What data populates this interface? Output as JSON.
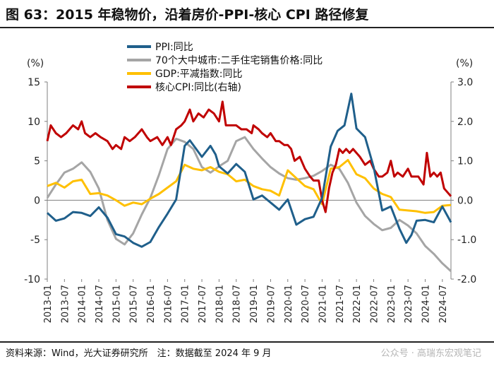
{
  "title": "图 63：2015 年稳物价，沿着房价-PPI-核心 CPI 路径修复",
  "footer": {
    "source": "资料来源：Wind，光大证券研究所　注：数据截至 2024 年 9 月",
    "watermark": "公众号 · 高瑞东宏观笔记"
  },
  "chart_data": {
    "type": "line",
    "left_unit": "(%)",
    "right_unit": "(%)",
    "left_ylim": [
      -10,
      15
    ],
    "right_ylim": [
      -2.0,
      3.0
    ],
    "left_ticks": [
      "15",
      "10",
      "5",
      "0",
      "-5",
      "-10"
    ],
    "right_ticks": [
      "3.0",
      "2.0",
      "1.0",
      "0.0",
      "-1.0",
      "-2.0"
    ],
    "x_range": [
      2013.0,
      2024.75
    ],
    "x_ticks": [
      "2013-01",
      "2013-07",
      "2014-01",
      "2014-07",
      "2015-01",
      "2015-07",
      "2016-01",
      "2016-07",
      "2017-01",
      "2017-07",
      "2018-01",
      "2018-07",
      "2019-01",
      "2019-07",
      "2020-01",
      "2020-07",
      "2021-01",
      "2021-07",
      "2022-01",
      "2022-07",
      "2023-01",
      "2023-07",
      "2024-01",
      "2024-07"
    ],
    "series": [
      {
        "name": "PPI:同比",
        "color": "#1f5f8b",
        "axis": "left",
        "width": 3,
        "points": [
          [
            2013.0,
            -1.6
          ],
          [
            2013.25,
            -2.6
          ],
          [
            2013.5,
            -2.3
          ],
          [
            2013.75,
            -1.5
          ],
          [
            2014.0,
            -1.6
          ],
          [
            2014.25,
            -2.0
          ],
          [
            2014.5,
            -0.9
          ],
          [
            2014.75,
            -2.2
          ],
          [
            2015.0,
            -4.3
          ],
          [
            2015.25,
            -4.6
          ],
          [
            2015.5,
            -5.4
          ],
          [
            2015.75,
            -5.9
          ],
          [
            2016.0,
            -5.3
          ],
          [
            2016.25,
            -3.4
          ],
          [
            2016.5,
            -1.7
          ],
          [
            2016.75,
            0.1
          ],
          [
            2017.0,
            6.9
          ],
          [
            2017.15,
            7.6
          ],
          [
            2017.35,
            6.4
          ],
          [
            2017.5,
            5.5
          ],
          [
            2017.75,
            6.9
          ],
          [
            2017.9,
            5.8
          ],
          [
            2018.0,
            4.3
          ],
          [
            2018.25,
            3.4
          ],
          [
            2018.5,
            4.6
          ],
          [
            2018.75,
            3.6
          ],
          [
            2019.0,
            0.1
          ],
          [
            2019.25,
            0.6
          ],
          [
            2019.5,
            -0.3
          ],
          [
            2019.75,
            -1.2
          ],
          [
            2020.0,
            0.1
          ],
          [
            2020.25,
            -3.1
          ],
          [
            2020.5,
            -2.4
          ],
          [
            2020.75,
            -2.1
          ],
          [
            2021.0,
            0.3
          ],
          [
            2021.25,
            6.8
          ],
          [
            2021.45,
            8.8
          ],
          [
            2021.65,
            9.5
          ],
          [
            2021.85,
            13.5
          ],
          [
            2022.0,
            9.1
          ],
          [
            2022.25,
            8.0
          ],
          [
            2022.5,
            4.2
          ],
          [
            2022.75,
            -1.3
          ],
          [
            2023.0,
            -0.8
          ],
          [
            2023.25,
            -3.6
          ],
          [
            2023.45,
            -5.4
          ],
          [
            2023.6,
            -4.4
          ],
          [
            2023.75,
            -2.6
          ],
          [
            2024.0,
            -2.5
          ],
          [
            2024.25,
            -2.8
          ],
          [
            2024.5,
            -0.8
          ],
          [
            2024.75,
            -2.8
          ]
        ]
      },
      {
        "name": "70个大中城市:二手住宅销售价格:同比",
        "color": "#a5a5a5",
        "axis": "left",
        "width": 3,
        "points": [
          [
            2013.0,
            0.3
          ],
          [
            2013.25,
            2.0
          ],
          [
            2013.5,
            3.5
          ],
          [
            2013.75,
            4.0
          ],
          [
            2014.0,
            4.8
          ],
          [
            2014.25,
            3.6
          ],
          [
            2014.5,
            1.5
          ],
          [
            2014.75,
            -2.5
          ],
          [
            2015.0,
            -4.9
          ],
          [
            2015.25,
            -5.6
          ],
          [
            2015.5,
            -4.2
          ],
          [
            2015.75,
            -1.8
          ],
          [
            2016.0,
            0.3
          ],
          [
            2016.25,
            3.2
          ],
          [
            2016.5,
            6.5
          ],
          [
            2016.75,
            7.8
          ],
          [
            2017.0,
            7.4
          ],
          [
            2017.25,
            6.5
          ],
          [
            2017.5,
            4.2
          ],
          [
            2017.75,
            3.5
          ],
          [
            2018.0,
            4.3
          ],
          [
            2018.25,
            5.0
          ],
          [
            2018.5,
            7.5
          ],
          [
            2018.75,
            8.0
          ],
          [
            2019.0,
            6.5
          ],
          [
            2019.25,
            5.3
          ],
          [
            2019.5,
            4.2
          ],
          [
            2019.75,
            3.4
          ],
          [
            2020.0,
            2.8
          ],
          [
            2020.25,
            2.6
          ],
          [
            2020.5,
            2.8
          ],
          [
            2020.75,
            3.1
          ],
          [
            2021.0,
            3.7
          ],
          [
            2021.25,
            4.5
          ],
          [
            2021.5,
            4.0
          ],
          [
            2021.75,
            2.2
          ],
          [
            2022.0,
            -0.3
          ],
          [
            2022.25,
            -2.0
          ],
          [
            2022.5,
            -3.0
          ],
          [
            2022.75,
            -3.8
          ],
          [
            2023.0,
            -3.5
          ],
          [
            2023.25,
            -2.5
          ],
          [
            2023.5,
            -3.2
          ],
          [
            2023.75,
            -4.2
          ],
          [
            2024.0,
            -5.8
          ],
          [
            2024.25,
            -6.8
          ],
          [
            2024.5,
            -8.0
          ],
          [
            2024.75,
            -9.0
          ]
        ]
      },
      {
        "name": "GDP:平减指数:同比",
        "color": "#ffc000",
        "axis": "left",
        "width": 3,
        "points": [
          [
            2013.0,
            1.8
          ],
          [
            2013.25,
            2.2
          ],
          [
            2013.5,
            1.6
          ],
          [
            2013.75,
            2.4
          ],
          [
            2014.0,
            2.6
          ],
          [
            2014.25,
            0.8
          ],
          [
            2014.5,
            0.9
          ],
          [
            2014.75,
            0.6
          ],
          [
            2015.0,
            0.0
          ],
          [
            2015.25,
            -0.7
          ],
          [
            2015.5,
            -0.3
          ],
          [
            2015.75,
            -0.5
          ],
          [
            2016.0,
            0.2
          ],
          [
            2016.25,
            0.8
          ],
          [
            2016.5,
            1.6
          ],
          [
            2016.75,
            2.4
          ],
          [
            2017.0,
            4.5
          ],
          [
            2017.25,
            4.0
          ],
          [
            2017.5,
            3.8
          ],
          [
            2017.75,
            4.2
          ],
          [
            2018.0,
            3.6
          ],
          [
            2018.25,
            3.3
          ],
          [
            2018.5,
            2.4
          ],
          [
            2018.75,
            2.6
          ],
          [
            2019.0,
            1.8
          ],
          [
            2019.25,
            1.4
          ],
          [
            2019.5,
            1.2
          ],
          [
            2019.75,
            0.6
          ],
          [
            2020.0,
            3.8
          ],
          [
            2020.25,
            2.8
          ],
          [
            2020.5,
            1.8
          ],
          [
            2020.75,
            1.4
          ],
          [
            2021.0,
            -0.5
          ],
          [
            2021.25,
            4.0
          ],
          [
            2021.5,
            4.2
          ],
          [
            2021.75,
            5.1
          ],
          [
            2022.0,
            3.3
          ],
          [
            2022.25,
            2.8
          ],
          [
            2022.5,
            1.5
          ],
          [
            2022.75,
            0.8
          ],
          [
            2023.0,
            0.4
          ],
          [
            2023.25,
            -1.2
          ],
          [
            2023.5,
            -1.3
          ],
          [
            2023.75,
            -1.4
          ],
          [
            2024.0,
            -1.6
          ],
          [
            2024.25,
            -1.5
          ],
          [
            2024.5,
            -0.7
          ],
          [
            2024.75,
            -0.6
          ]
        ]
      },
      {
        "name": "核心CPI:同比(右轴)",
        "color": "#c00000",
        "axis": "right",
        "width": 3,
        "points": [
          [
            2013.0,
            1.5
          ],
          [
            2013.1,
            1.9
          ],
          [
            2013.25,
            1.7
          ],
          [
            2013.4,
            1.6
          ],
          [
            2013.55,
            1.7
          ],
          [
            2013.75,
            1.9
          ],
          [
            2013.9,
            1.8
          ],
          [
            2014.0,
            2.0
          ],
          [
            2014.1,
            1.7
          ],
          [
            2014.25,
            1.6
          ],
          [
            2014.4,
            1.7
          ],
          [
            2014.55,
            1.6
          ],
          [
            2014.75,
            1.5
          ],
          [
            2014.9,
            1.3
          ],
          [
            2015.0,
            1.4
          ],
          [
            2015.15,
            1.3
          ],
          [
            2015.25,
            1.6
          ],
          [
            2015.4,
            1.5
          ],
          [
            2015.55,
            1.6
          ],
          [
            2015.75,
            1.8
          ],
          [
            2015.9,
            1.6
          ],
          [
            2016.0,
            1.5
          ],
          [
            2016.2,
            1.6
          ],
          [
            2016.35,
            1.4
          ],
          [
            2016.5,
            1.6
          ],
          [
            2016.6,
            1.4
          ],
          [
            2016.75,
            1.8
          ],
          [
            2016.9,
            1.9
          ],
          [
            2017.0,
            2.0
          ],
          [
            2017.15,
            2.3
          ],
          [
            2017.25,
            2.0
          ],
          [
            2017.4,
            2.2
          ],
          [
            2017.55,
            2.1
          ],
          [
            2017.7,
            2.3
          ],
          [
            2017.85,
            2.2
          ],
          [
            2018.0,
            2.0
          ],
          [
            2018.1,
            2.5
          ],
          [
            2018.2,
            1.9
          ],
          [
            2018.35,
            1.9
          ],
          [
            2018.5,
            1.9
          ],
          [
            2018.65,
            1.8
          ],
          [
            2018.8,
            1.8
          ],
          [
            2018.95,
            1.7
          ],
          [
            2019.0,
            1.9
          ],
          [
            2019.15,
            1.8
          ],
          [
            2019.25,
            1.7
          ],
          [
            2019.4,
            1.6
          ],
          [
            2019.5,
            1.7
          ],
          [
            2019.65,
            1.5
          ],
          [
            2019.75,
            1.5
          ],
          [
            2019.9,
            1.4
          ],
          [
            2020.0,
            1.4
          ],
          [
            2020.1,
            1.3
          ],
          [
            2020.2,
            1.0
          ],
          [
            2020.35,
            1.1
          ],
          [
            2020.5,
            0.8
          ],
          [
            2020.65,
            0.6
          ],
          [
            2020.75,
            0.5
          ],
          [
            2020.9,
            0.5
          ],
          [
            2021.0,
            0.0
          ],
          [
            2021.1,
            -0.3
          ],
          [
            2021.2,
            0.3
          ],
          [
            2021.3,
            0.7
          ],
          [
            2021.4,
            0.9
          ],
          [
            2021.5,
            1.3
          ],
          [
            2021.6,
            1.2
          ],
          [
            2021.7,
            1.3
          ],
          [
            2021.8,
            1.2
          ],
          [
            2021.9,
            1.3
          ],
          [
            2022.0,
            1.2
          ],
          [
            2022.1,
            1.1
          ],
          [
            2022.25,
            0.9
          ],
          [
            2022.4,
            1.0
          ],
          [
            2022.5,
            0.8
          ],
          [
            2022.65,
            0.6
          ],
          [
            2022.75,
            0.6
          ],
          [
            2022.9,
            0.7
          ],
          [
            2023.0,
            1.0
          ],
          [
            2023.1,
            0.6
          ],
          [
            2023.2,
            0.7
          ],
          [
            2023.35,
            0.6
          ],
          [
            2023.5,
            0.8
          ],
          [
            2023.6,
            0.6
          ],
          [
            2023.7,
            0.6
          ],
          [
            2023.8,
            0.6
          ],
          [
            2023.95,
            0.4
          ],
          [
            2024.05,
            1.2
          ],
          [
            2024.15,
            0.6
          ],
          [
            2024.25,
            0.7
          ],
          [
            2024.35,
            0.6
          ],
          [
            2024.45,
            0.7
          ],
          [
            2024.55,
            0.3
          ],
          [
            2024.65,
            0.2
          ],
          [
            2024.75,
            0.1
          ]
        ]
      }
    ]
  }
}
